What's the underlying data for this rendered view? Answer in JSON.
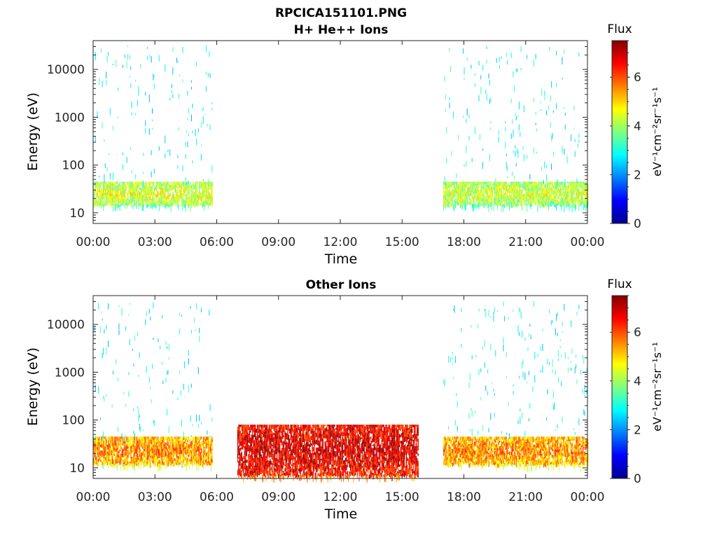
{
  "figure_title": "RPCICA151101.PNG",
  "chart_data": [
    {
      "type": "heatmap",
      "title": "H+ He++ Ions",
      "xlabel": "Time",
      "ylabel": "Energy (eV)",
      "x_ticks": [
        "00:00",
        "03:00",
        "06:00",
        "09:00",
        "12:00",
        "15:00",
        "18:00",
        "21:00",
        "00:00"
      ],
      "x_range_hours": [
        0,
        24
      ],
      "y_scale": "log",
      "y_ticks": [
        "10",
        "100",
        "1000",
        "10000"
      ],
      "y_range": [
        6,
        40000
      ],
      "colorbar": {
        "label": "Flux",
        "unit": "eV⁻¹cm⁻²sr⁻¹s⁻¹",
        "ticks": [
          "0",
          "2",
          "4",
          "6"
        ],
        "range": [
          0,
          7.5
        ],
        "colormap": "jet"
      },
      "regions": [
        {
          "start_h": 0.0,
          "end_h": 5.8,
          "energy_low": 15,
          "energy_high": 45,
          "level": 3.9,
          "sparse_high_energy": true
        },
        {
          "start_h": 17.0,
          "end_h": 24.0,
          "energy_low": 15,
          "energy_high": 45,
          "level": 3.8,
          "sparse_high_energy": true
        }
      ]
    },
    {
      "type": "heatmap",
      "title": "Other Ions",
      "xlabel": "Time",
      "ylabel": "Energy (eV)",
      "x_ticks": [
        "00:00",
        "03:00",
        "06:00",
        "09:00",
        "12:00",
        "15:00",
        "18:00",
        "21:00",
        "00:00"
      ],
      "x_range_hours": [
        0,
        24
      ],
      "y_scale": "log",
      "y_ticks": [
        "10",
        "100",
        "1000",
        "10000"
      ],
      "y_range": [
        6,
        40000
      ],
      "colorbar": {
        "label": "Flux",
        "unit": "eV⁻¹cm⁻²sr⁻¹s⁻¹",
        "ticks": [
          "0",
          "2",
          "4",
          "6"
        ],
        "range": [
          0,
          7.5
        ],
        "colormap": "jet"
      },
      "regions": [
        {
          "start_h": 0.0,
          "end_h": 5.8,
          "energy_low": 12,
          "energy_high": 45,
          "level": 5.0,
          "sparse_high_energy": true
        },
        {
          "start_h": 7.0,
          "end_h": 15.8,
          "energy_low": 7,
          "energy_high": 80,
          "level": 6.3,
          "sparse_high_energy": false
        },
        {
          "start_h": 17.0,
          "end_h": 24.0,
          "energy_low": 12,
          "energy_high": 45,
          "level": 5.0,
          "sparse_high_energy": true
        }
      ]
    }
  ]
}
